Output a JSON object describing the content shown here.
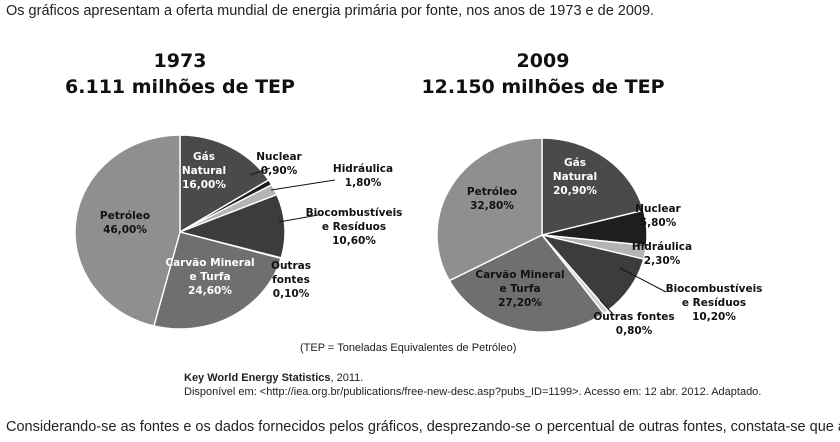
{
  "intro_text": "Os gráficos apresentam a oferta mundial de energia primária por fonte, nos anos de 1973 e de 2009.",
  "footer_question": "Considerando-se as fontes e os dados fornecidos pelos gráficos, desprezando-se o percentual de outras fontes, constata-se que a(s)",
  "tep_note": "(TEP = Toneladas Equivalentes de Petróleo)",
  "source": {
    "title": "Key World Energy Statistics",
    "year": ", 2011.",
    "availability": "Disponível em: <http://iea.org.br/publications/free-new-desc.asp?pubs_ID=1199>.  Acesso em: 12 abr. 2012. Adaptado."
  },
  "chart_data": [
    {
      "type": "pie",
      "title_line1": "1973",
      "title_line2": "6.111 milhões de TEP",
      "slices": [
        {
          "name": "Gás Natural",
          "value": 16.0,
          "label_name": [
            "Gás",
            "Natural"
          ],
          "label_value": "16,00%",
          "color": "#4a4a4a"
        },
        {
          "name": "Nuclear",
          "value": 0.9,
          "label_name": [
            "Nuclear"
          ],
          "label_value": "0,90%",
          "color": "#1e1e1e"
        },
        {
          "name": "Hidráulica",
          "value": 1.8,
          "label_name": [
            "Hidráulica"
          ],
          "label_value": "1,80%",
          "color": "#b4b4b4"
        },
        {
          "name": "Biocombustíveis e Resíduos",
          "value": 10.6,
          "label_name": [
            "Biocombustíveis",
            "e Resíduos"
          ],
          "label_value": "10,60%",
          "color": "#3c3c3c"
        },
        {
          "name": "Outras fontes",
          "value": 0.1,
          "label_name": [
            "Outras",
            "fontes"
          ],
          "label_value": "0,10%",
          "color": "#d0d0d0"
        },
        {
          "name": "Carvão Mineral e Turfa",
          "value": 24.6,
          "label_name": [
            "Carvão Mineral",
            "e Turfa"
          ],
          "label_value": "24,60%",
          "color": "#6f6f6f"
        },
        {
          "name": "Petróleo",
          "value": 46.0,
          "label_name": [
            "Petróleo"
          ],
          "label_value": "46,00%",
          "color": "#8f8f8f"
        }
      ]
    },
    {
      "type": "pie",
      "title_line1": "2009",
      "title_line2": "12.150 milhões de TEP",
      "slices": [
        {
          "name": "Gás Natural",
          "value": 20.9,
          "label_name": [
            "Gás",
            "Natural"
          ],
          "label_value": "20,90%",
          "color": "#4a4a4a"
        },
        {
          "name": "Nuclear",
          "value": 5.8,
          "label_name": [
            "Nuclear"
          ],
          "label_value": "5,80%",
          "color": "#1e1e1e"
        },
        {
          "name": "Hidráulica",
          "value": 2.3,
          "label_name": [
            "Hidráulica"
          ],
          "label_value": "2,30%",
          "color": "#b4b4b4"
        },
        {
          "name": "Biocombustíveis e Resíduos",
          "value": 10.2,
          "label_name": [
            "Biocombustíveis",
            "e Resíduos"
          ],
          "label_value": "10,20%",
          "color": "#3c3c3c"
        },
        {
          "name": "Outras fontes",
          "value": 0.8,
          "label_name": [
            "Outras fontes"
          ],
          "label_value": "0,80%",
          "color": "#d0d0d0"
        },
        {
          "name": "Carvão Mineral e Turfa",
          "value": 27.2,
          "label_name": [
            "Carvão Mineral",
            "e Turfa"
          ],
          "label_value": "27,20%",
          "color": "#6f6f6f"
        },
        {
          "name": "Petróleo",
          "value": 32.8,
          "label_name": [
            "Petróleo"
          ],
          "label_value": "32,80%",
          "color": "#8f8f8f"
        }
      ]
    }
  ]
}
